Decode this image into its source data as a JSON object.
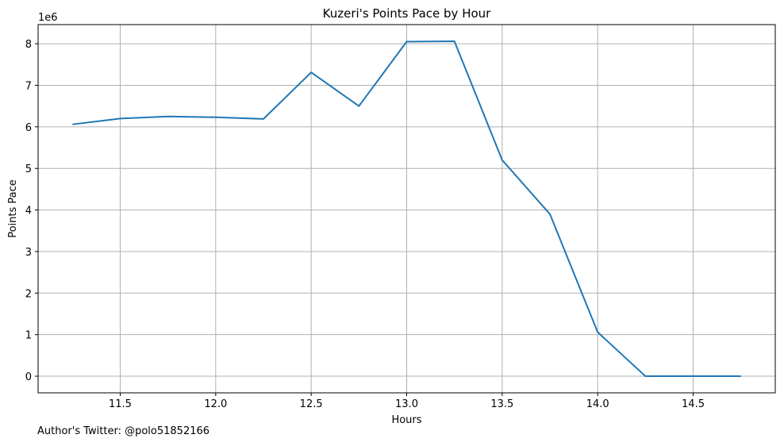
{
  "chart_data": {
    "type": "line",
    "title": "Kuzeri's Points Pace by Hour",
    "xlabel": "Hours",
    "ylabel": "Points Pace",
    "y_offset_label": "1e6",
    "xlim": [
      11.07,
      14.93
    ],
    "ylim": [
      -400000,
      8460000
    ],
    "xticks": [
      11.5,
      12.0,
      12.5,
      13.0,
      13.5,
      14.0,
      14.5
    ],
    "xtick_labels": [
      "11.5",
      "12.0",
      "12.5",
      "13.0",
      "13.5",
      "14.0",
      "14.5"
    ],
    "yticks": [
      0,
      1000000,
      2000000,
      3000000,
      4000000,
      5000000,
      6000000,
      7000000,
      8000000
    ],
    "ytick_labels": [
      "0",
      "1",
      "2",
      "3",
      "4",
      "5",
      "6",
      "7",
      "8"
    ],
    "grid": true,
    "line_color": "#1f77b4",
    "series": [
      {
        "x": [
          11.25,
          11.5,
          11.75,
          12.0,
          12.25,
          12.5,
          12.75,
          13.0,
          13.25,
          13.5,
          13.75,
          14.0,
          14.25,
          14.5,
          14.75
        ],
        "values": [
          6060000,
          6200000,
          6250000,
          6230000,
          6190000,
          7310000,
          6500000,
          8050000,
          8060000,
          5200000,
          3900000,
          1060000,
          0,
          0,
          0
        ]
      }
    ]
  },
  "footnote": "Author's Twitter: @polo51852166"
}
